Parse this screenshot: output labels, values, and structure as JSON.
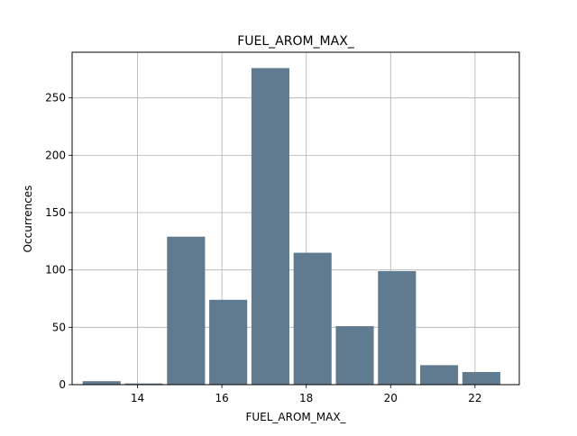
{
  "chart_data": {
    "type": "bar",
    "title": "FUEL_AROM_MAX_",
    "xlabel": "FUEL_AROM_MAX_",
    "ylabel": "Occurrences",
    "xlim": [
      12.45,
      23.05
    ],
    "ylim": [
      0,
      289.8
    ],
    "grid": true,
    "bins": [
      {
        "start": 12.7,
        "end": 13.6,
        "value": 3
      },
      {
        "start": 13.7,
        "end": 14.6,
        "value": 1
      },
      {
        "start": 14.7,
        "end": 15.6,
        "value": 129
      },
      {
        "start": 15.7,
        "end": 16.6,
        "value": 74
      },
      {
        "start": 16.7,
        "end": 17.6,
        "value": 276
      },
      {
        "start": 17.7,
        "end": 18.6,
        "value": 115
      },
      {
        "start": 18.7,
        "end": 19.6,
        "value": 51
      },
      {
        "start": 19.7,
        "end": 20.6,
        "value": 99
      },
      {
        "start": 20.7,
        "end": 21.6,
        "value": 17
      },
      {
        "start": 21.7,
        "end": 22.6,
        "value": 11
      }
    ],
    "xticks": [
      14,
      16,
      18,
      20,
      22
    ],
    "yticks": [
      0,
      50,
      100,
      150,
      200,
      250
    ],
    "bar_color": "#607b8f"
  }
}
